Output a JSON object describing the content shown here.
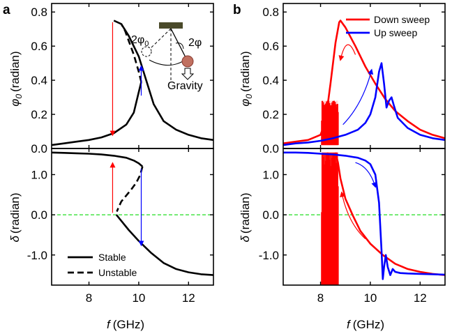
{
  "chart_data": [
    {
      "panel": "a-top",
      "type": "line",
      "panel_label": "a",
      "ylabel_symbol": "φ",
      "ylabel_sub": "0",
      "ylabel_unit": "(radian)",
      "xlim": [
        6.5,
        13
      ],
      "ylim": [
        0,
        0.85
      ],
      "yticks": [
        "0.0",
        "0.2",
        "0.4",
        "0.6",
        "0.8"
      ],
      "series": [
        {
          "name": "stable-lower",
          "style": "solid",
          "color": "#000000",
          "x": [
            6.5,
            7.0,
            7.5,
            8.0,
            8.5,
            9.0,
            9.5,
            9.8,
            10.0,
            10.1
          ],
          "y": [
            0.02,
            0.03,
            0.04,
            0.05,
            0.065,
            0.09,
            0.14,
            0.21,
            0.33,
            0.39
          ]
        },
        {
          "name": "unstable",
          "style": "dashed",
          "color": "#000000",
          "x": [
            10.1,
            10.0,
            9.8,
            9.6,
            9.45,
            9.3
          ],
          "y": [
            0.39,
            0.45,
            0.55,
            0.63,
            0.69,
            0.73
          ]
        },
        {
          "name": "stable-upper",
          "style": "solid",
          "color": "#000000",
          "x": [
            9.0,
            9.3,
            9.6,
            10.0,
            10.3,
            10.6,
            11.0,
            11.5,
            12.0,
            12.5,
            13.0
          ],
          "y": [
            0.75,
            0.73,
            0.66,
            0.54,
            0.4,
            0.26,
            0.16,
            0.11,
            0.08,
            0.06,
            0.05
          ]
        }
      ],
      "arrows": [
        {
          "color": "#ff0000",
          "x": 8.95,
          "y_from": 0.74,
          "y_to": 0.08
        },
        {
          "color": "#0000ff",
          "x": 10.1,
          "y_from": 0.31,
          "y_to": 0.48
        }
      ],
      "inset": {
        "label_2phi0": "2φ",
        "label_2phi0_sub": "0",
        "label_2phi": "2φ",
        "label_gravity": "Gravity"
      }
    },
    {
      "panel": "a-bottom",
      "type": "line",
      "ylabel_symbol": "δ",
      "ylabel_unit": "(radian)",
      "xlabel_symbol": "f",
      "xlabel_unit": "(GHz)",
      "xlim": [
        6.5,
        13
      ],
      "ylim": [
        -1.75,
        1.65
      ],
      "xticks": [
        "8",
        "10",
        "12"
      ],
      "yticks": [
        "1.0",
        "0.0",
        "-1.0"
      ],
      "reference_line": {
        "y": 0,
        "color": "#22dd22",
        "style": "dashed"
      },
      "series": [
        {
          "name": "stable-upper",
          "style": "solid",
          "color": "#000000",
          "x": [
            6.5,
            7.0,
            7.5,
            8.0,
            8.5,
            9.0,
            9.5,
            9.8,
            10.0,
            10.15
          ],
          "y": [
            1.55,
            1.54,
            1.53,
            1.52,
            1.5,
            1.47,
            1.42,
            1.35,
            1.28,
            1.2
          ]
        },
        {
          "name": "unstable",
          "style": "dashed",
          "color": "#000000",
          "x": [
            10.15,
            10.05,
            9.9,
            9.7,
            9.5,
            9.3,
            9.2,
            9.12
          ],
          "y": [
            1.2,
            0.98,
            0.8,
            0.63,
            0.48,
            0.33,
            0.2,
            0.08
          ]
        },
        {
          "name": "stable-lower",
          "style": "solid",
          "color": "#000000",
          "x": [
            9.1,
            9.3,
            9.6,
            10.0,
            10.5,
            11.0,
            11.5,
            12.0,
            12.5,
            13.0
          ],
          "y": [
            0.0,
            -0.15,
            -0.38,
            -0.65,
            -0.95,
            -1.2,
            -1.35,
            -1.43,
            -1.48,
            -1.5
          ]
        }
      ],
      "arrows": [
        {
          "color": "#ff0000",
          "x": 8.95,
          "y_from": 0.05,
          "y_to": 1.28
        },
        {
          "color": "#0000ff",
          "x": 10.1,
          "y_from": 1.15,
          "y_to": -0.75
        }
      ],
      "legend": [
        {
          "label": "Stable",
          "style": "solid"
        },
        {
          "label": "Unstable",
          "style": "dashed"
        }
      ]
    },
    {
      "panel": "b-top",
      "type": "line",
      "panel_label": "b",
      "ylabel_symbol": "φ",
      "ylabel_sub": "0",
      "ylabel_unit": "(radian)",
      "xlim": [
        6.5,
        13
      ],
      "ylim": [
        0,
        0.85
      ],
      "yticks": [
        "0.0",
        "0.2",
        "0.4",
        "0.6",
        "0.8"
      ],
      "series": [
        {
          "name": "Down sweep",
          "color": "#ff0000",
          "x": [
            13.0,
            12.5,
            12.0,
            11.5,
            11.0,
            10.6,
            10.2,
            9.8,
            9.4,
            9.0,
            8.8,
            8.75,
            8.6,
            8.4,
            8.2,
            8.0,
            7.5,
            7.0,
            6.5
          ],
          "y": [
            0.06,
            0.08,
            0.11,
            0.16,
            0.22,
            0.29,
            0.38,
            0.48,
            0.6,
            0.71,
            0.75,
            0.74,
            0.62,
            0.38,
            0.16,
            0.08,
            0.05,
            0.04,
            0.03
          ]
        },
        {
          "name": "Up sweep",
          "color": "#0000ff",
          "x": [
            6.5,
            7.0,
            7.5,
            8.0,
            8.5,
            9.0,
            9.5,
            9.8,
            10.0,
            10.2,
            10.35,
            10.45,
            10.55,
            10.65,
            10.75,
            10.85,
            10.95,
            11.1,
            11.5,
            12.0,
            12.5,
            13.0
          ],
          "y": [
            0.02,
            0.03,
            0.035,
            0.045,
            0.06,
            0.08,
            0.11,
            0.15,
            0.2,
            0.3,
            0.45,
            0.5,
            0.38,
            0.24,
            0.28,
            0.3,
            0.25,
            0.18,
            0.12,
            0.08,
            0.06,
            0.05
          ]
        }
      ],
      "oscillation_band": {
        "series": "Down sweep",
        "x_range": [
          8.05,
          8.7
        ],
        "y_range": [
          0.02,
          0.28
        ]
      },
      "guide_arrows": [
        {
          "color": "#ff0000",
          "path": [
            [
              9.4,
              0.55
            ],
            [
              9.05,
              0.68
            ],
            [
              8.8,
              0.52
            ]
          ]
        },
        {
          "color": "#0000ff",
          "path": [
            [
              8.9,
              0.14
            ],
            [
              9.7,
              0.26
            ],
            [
              10.05,
              0.46
            ]
          ]
        }
      ]
    },
    {
      "panel": "b-bottom",
      "type": "line",
      "ylabel_symbol": "δ",
      "ylabel_unit": "(radian)",
      "xlabel_symbol": "f",
      "xlabel_unit": "(GHz)",
      "xlim": [
        6.5,
        13
      ],
      "ylim": [
        -1.75,
        1.65
      ],
      "xticks": [
        "8",
        "10",
        "12"
      ],
      "yticks": [
        "1.0",
        "0.0",
        "-1.0"
      ],
      "reference_line": {
        "y": 0,
        "color": "#22dd22",
        "style": "dashed"
      },
      "series": [
        {
          "name": "Down sweep",
          "color": "#ff0000",
          "x": [
            13.0,
            12.5,
            12.0,
            11.5,
            11.0,
            10.5,
            10.0,
            9.6,
            9.3,
            9.0,
            8.8,
            8.7,
            8.6
          ],
          "y": [
            -1.5,
            -1.47,
            -1.42,
            -1.35,
            -1.22,
            -1.0,
            -0.72,
            -0.4,
            -0.02,
            0.4,
            0.9,
            1.3,
            1.55
          ]
        },
        {
          "name": "Up sweep",
          "color": "#0000ff",
          "x": [
            6.5,
            7.0,
            7.5,
            8.0,
            8.5,
            9.0,
            9.5,
            9.8,
            10.0,
            10.2,
            10.35,
            10.45,
            10.5,
            10.55,
            10.62,
            10.7,
            10.8,
            10.9,
            11.0,
            11.2,
            11.5,
            12.0,
            12.5,
            13.0
          ],
          "y": [
            1.55,
            1.55,
            1.54,
            1.52,
            1.5,
            1.47,
            1.42,
            1.35,
            1.26,
            1.0,
            0.3,
            -0.9,
            -1.6,
            -1.3,
            -1.0,
            -1.3,
            -1.5,
            -1.35,
            -1.42,
            -1.45,
            -1.46,
            -1.47,
            -1.48,
            -1.49
          ]
        }
      ],
      "oscillation_band": {
        "series": "Down sweep",
        "x_range": [
          8.05,
          8.7
        ],
        "y_range": [
          -1.75,
          1.55
        ]
      },
      "guide_arrows": [
        {
          "color": "#0000ff",
          "path": [
            [
              9.4,
              1.3
            ],
            [
              9.95,
              1.2
            ],
            [
              10.2,
              0.7
            ]
          ]
        },
        {
          "color": "#ff0000",
          "path": [
            [
              9.8,
              -0.6
            ],
            [
              9.1,
              -0.2
            ],
            [
              8.85,
              0.55
            ]
          ]
        }
      ],
      "legend": [
        {
          "label": "Down sweep",
          "color": "#ff0000"
        },
        {
          "label": "Up sweep",
          "color": "#0000ff"
        }
      ]
    }
  ]
}
